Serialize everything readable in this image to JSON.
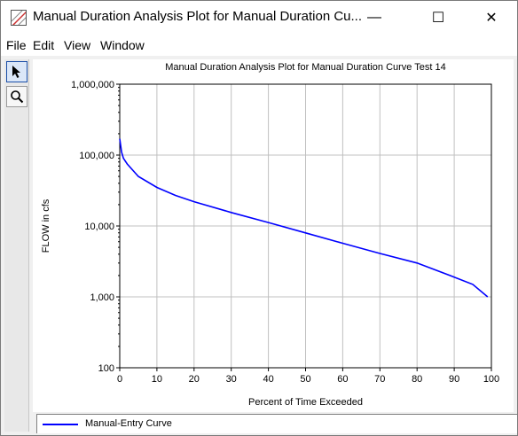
{
  "window": {
    "title": "Manual Duration Analysis Plot for Manual Duration Cu...",
    "minimize_glyph": "—",
    "maximize_glyph": "☐",
    "close_glyph": "✕"
  },
  "menu": [
    "File",
    "Edit",
    "View",
    "Window"
  ],
  "toolbar": {
    "tools": [
      {
        "icon": "pointer-arrow-icon",
        "selected": true
      },
      {
        "icon": "zoom-magnifier-icon",
        "selected": false
      }
    ]
  },
  "legend": {
    "series_label": "Manual-Entry Curve",
    "series_color": "#0000ff"
  },
  "chart_data": {
    "type": "line",
    "title": "Manual Duration Analysis Plot for Manual Duration Curve Test 14",
    "xlabel": "Percent of Time Exceeded",
    "ylabel": "FLOW in cfs",
    "xlim": [
      0,
      100
    ],
    "ylim": [
      100,
      1000000
    ],
    "y_scale": "log",
    "grid": true,
    "x_ticks": [
      "0",
      "10",
      "20",
      "30",
      "40",
      "50",
      "60",
      "70",
      "80",
      "90",
      "100"
    ],
    "y_ticks": [
      "100",
      "1,000",
      "10,000",
      "100,000",
      "1,000,000"
    ],
    "series": [
      {
        "name": "Manual-Entry Curve",
        "color": "#0000ff",
        "x": [
          0,
          0.5,
          1,
          2,
          5,
          10,
          15,
          20,
          30,
          40,
          50,
          60,
          70,
          80,
          90,
          95,
          99
        ],
        "y": [
          170000,
          110000,
          90000,
          75000,
          50000,
          35000,
          27000,
          22000,
          15500,
          11200,
          8000,
          5700,
          4100,
          3000,
          1900,
          1500,
          1000
        ]
      }
    ]
  }
}
